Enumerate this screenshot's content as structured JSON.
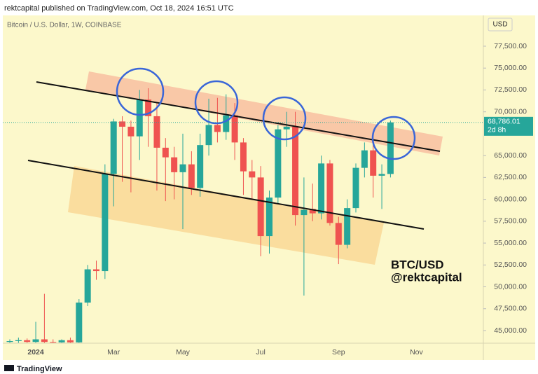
{
  "header": "rektcapital published on TradingView.com, Oct 18, 2024 16:51 UTC",
  "footer": "TradingView",
  "chart_data": {
    "type": "candlestick",
    "subtitle": "Bitcoin / U.S. Dollar, 1W, COINBASE",
    "currency": "USD",
    "categories": [
      null,
      null,
      null,
      "2024",
      null,
      null,
      null,
      null,
      null,
      null,
      null,
      null,
      "Mar",
      null,
      null,
      null,
      null,
      null,
      null,
      null,
      "May",
      null,
      null,
      null,
      null,
      null,
      null,
      null,
      null,
      "Jul",
      null,
      null,
      null,
      null,
      null,
      null,
      null,
      null,
      "Sep",
      null,
      null,
      null,
      null,
      null,
      null,
      null,
      null,
      "Nov"
    ],
    "open": [
      43700,
      43800,
      43900,
      43700,
      44000,
      43700,
      43650,
      43900,
      43650,
      48200,
      52000,
      51800,
      62900,
      68900,
      68300,
      67200,
      71400,
      69500,
      65900,
      64800,
      63100,
      64000,
      61300,
      66200,
      68500,
      67700,
      69600,
      66500,
      63200,
      62500,
      55800,
      60200,
      68000,
      68300,
      58200,
      58900,
      58400,
      64100,
      57300,
      54800,
      59000,
      63600,
      65600,
      62700,
      62900,
      null,
      null,
      null
    ],
    "high": [
      44000,
      44200,
      44100,
      46000,
      49200,
      44000,
      44000,
      44200,
      48600,
      52500,
      53000,
      64000,
      69200,
      69500,
      69000,
      72500,
      72700,
      71000,
      67000,
      66000,
      67500,
      65500,
      67500,
      71500,
      71600,
      72000,
      71000,
      67000,
      64500,
      63800,
      61000,
      68500,
      70000,
      70000,
      62500,
      61800,
      65000,
      64500,
      58000,
      60000,
      64100,
      66500,
      66500,
      64000,
      69000,
      null,
      null,
      null
    ],
    "low": [
      43600,
      43600,
      43600,
      43600,
      43600,
      43600,
      43600,
      43600,
      43600,
      47800,
      50800,
      50900,
      59200,
      62000,
      60800,
      64500,
      66000,
      61000,
      59800,
      60000,
      56600,
      60500,
      60300,
      65000,
      66500,
      66800,
      64500,
      60500,
      60000,
      53500,
      53800,
      59500,
      66000,
      57000,
      49000,
      57500,
      57700,
      57000,
      52600,
      54400,
      58500,
      62500,
      60200,
      58900,
      62500,
      null,
      null,
      null
    ],
    "close": [
      43800,
      43900,
      43700,
      44000,
      43700,
      43650,
      43900,
      43650,
      48200,
      52000,
      51800,
      62900,
      68900,
      68300,
      67200,
      71400,
      69500,
      65900,
      64800,
      63100,
      64000,
      61300,
      66200,
      68500,
      67700,
      69600,
      66500,
      63200,
      62500,
      55800,
      60200,
      68000,
      68300,
      58200,
      58800,
      58400,
      64100,
      57300,
      54800,
      59000,
      63600,
      65600,
      62700,
      62900,
      68786.01,
      null,
      null,
      null
    ],
    "up_color": "#26a69a",
    "down_color": "#ef5350",
    "ylim": [
      43560,
      81020
    ],
    "yticks": [
      {
        "value": 45000,
        "label": "45,000.00"
      },
      {
        "value": 47500,
        "label": "47,500.00"
      },
      {
        "value": 50000,
        "label": "50,000.00"
      },
      {
        "value": 52500,
        "label": "52,500.00"
      },
      {
        "value": 55000,
        "label": "55,000.00"
      },
      {
        "value": 57500,
        "label": "57,500.00"
      },
      {
        "value": 60000,
        "label": "60,000.00"
      },
      {
        "value": 62500,
        "label": "62,500.00"
      },
      {
        "value": 65000,
        "label": "65,000.00"
      },
      {
        "value": 70000,
        "label": "70,000.00"
      },
      {
        "value": 72500,
        "label": "72,500.00"
      },
      {
        "value": 75000,
        "label": "75,000.00"
      },
      {
        "value": 77500,
        "label": "77,500.00"
      }
    ],
    "last_price_label": "68,786.01",
    "countdown": "2d 8h",
    "annotations": [
      "BTC/USD",
      "@rektcapital"
    ]
  }
}
